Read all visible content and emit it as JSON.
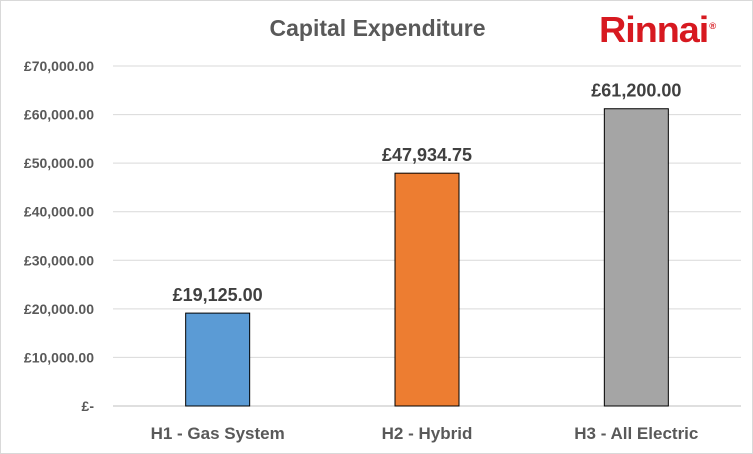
{
  "chart_data": {
    "type": "bar",
    "title": "Capital Expenditure",
    "categories": [
      "H1 - Gas System",
      "H2 - Hybrid",
      "H3 - All Electric"
    ],
    "values": [
      19125,
      47934.75,
      61200
    ],
    "data_labels": [
      "£19,125.00",
      "£47,934.75",
      "£61,200.00"
    ],
    "bar_colors": [
      "#5b9bd5",
      "#ed7d31",
      "#a5a5a5"
    ],
    "ylim": [
      0,
      70000
    ],
    "yticks": [
      0,
      10000,
      20000,
      30000,
      40000,
      50000,
      60000,
      70000
    ],
    "ytick_labels": [
      "£-",
      "£10,000.00",
      "£20,000.00",
      "£30,000.00",
      "£40,000.00",
      "£50,000.00",
      "£60,000.00",
      "£70,000.00"
    ],
    "grid": true,
    "legend": "none",
    "xlabel": "",
    "ylabel": ""
  },
  "logo": {
    "text": "Rinnai",
    "mark": "®",
    "color": "#d71920"
  }
}
